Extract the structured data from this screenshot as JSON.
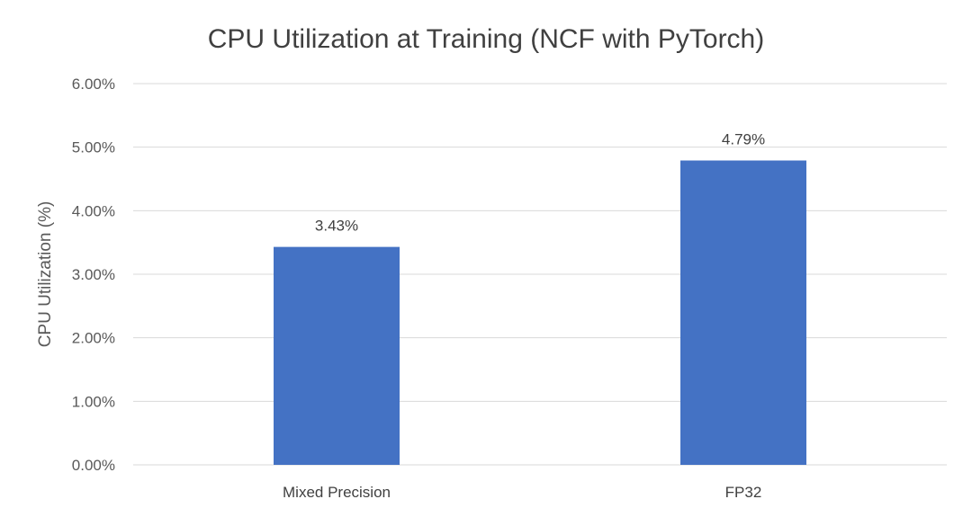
{
  "chart_data": {
    "type": "bar",
    "title": "CPU Utilization at Training  (NCF with PyTorch)",
    "xlabel": "",
    "ylabel": "CPU Utilization (%)",
    "categories": [
      "Mixed Precision",
      "FP32"
    ],
    "values": [
      3.43,
      4.79
    ],
    "data_labels": [
      "3.43%",
      "4.79%"
    ],
    "ylim": [
      0,
      6
    ],
    "yticks": [
      0,
      1,
      2,
      3,
      4,
      5,
      6
    ],
    "ytick_labels": [
      "0.00%",
      "1.00%",
      "2.00%",
      "3.00%",
      "4.00%",
      "5.00%",
      "6.00%"
    ],
    "grid": true,
    "legend": "none",
    "bar_color": "#4472c4"
  }
}
